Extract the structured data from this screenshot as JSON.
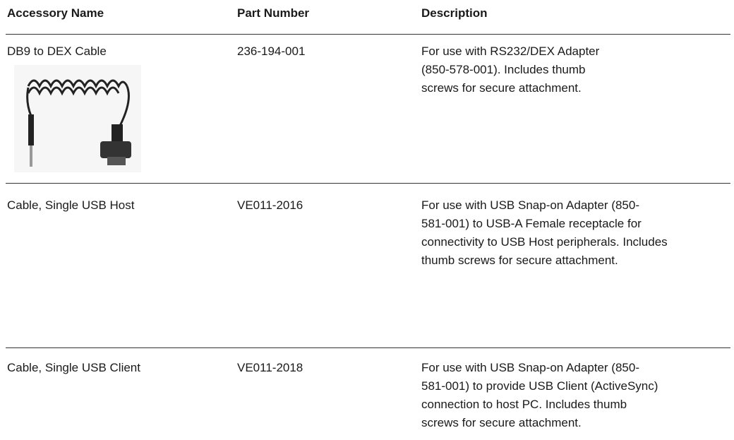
{
  "table": {
    "headers": [
      "Accessory Name",
      "Part Number",
      "Description"
    ],
    "rows": [
      {
        "name": "DB9 to DEX Cable",
        "part": "236-194-001",
        "description": [
          "For use with RS232/DEX Adapter",
          "(850-578-001). Includes thumb",
          "screws for secure attachment."
        ]
      },
      {
        "name": "Cable, Single USB Host",
        "part": "VE011-2016",
        "description": [
          "For use with USB Snap-on Adapter (850-",
          "581-001) to USB-A Female receptacle for",
          "connectivity to USB Host peripherals. Includes",
          "thumb screws for secure attachment."
        ]
      },
      {
        "name": "Cable, Single USB Client",
        "part": "VE011-2018",
        "description": [
          "For use with USB Snap-on Adapter (850-",
          "581-001) to provide USB Client (ActiveSync)",
          "connection to host PC. Includes thumb",
          "screws for secure attachment."
        ]
      }
    ]
  }
}
